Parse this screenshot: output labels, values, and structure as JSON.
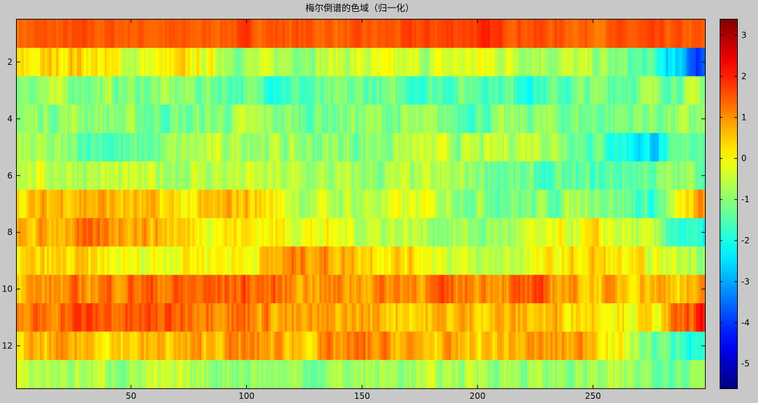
{
  "window": {
    "background": "#c8c8c8"
  },
  "chart_data": {
    "type": "heatmap",
    "title": "梅尔倒谱的色域（归一化）",
    "xlabel": "",
    "ylabel": "",
    "colormap": "jet",
    "x_range": [
      1,
      298
    ],
    "y_range": [
      1,
      13
    ],
    "y_reversed": true,
    "clim": [
      -5.6,
      3.4
    ],
    "n_rows": 13,
    "n_cols": 298,
    "xticks": [
      50,
      100,
      150,
      200,
      250
    ],
    "yticks": [
      2,
      4,
      6,
      8,
      10,
      12
    ],
    "colorbar_ticks": [
      3,
      2,
      1,
      0,
      -1,
      -2,
      -3,
      -4,
      -5
    ],
    "grid": false,
    "colorbar_location": "right",
    "row_profiles": [
      [
        1.4,
        1.5,
        1.5,
        1.4,
        1.6,
        1.5,
        1.4,
        1.6,
        1.8,
        1.6,
        1.4,
        1.5,
        1.4
      ],
      [
        0.0,
        0.6,
        -0.4,
        0.1,
        -0.8,
        -0.6,
        -0.4,
        -0.6,
        -0.2,
        -0.5,
        -0.8,
        -1.7,
        -4.0
      ],
      [
        -0.8,
        -0.9,
        -1.1,
        -1.0,
        -1.4,
        -1.6,
        -1.3,
        -1.5,
        -1.2,
        -1.7,
        -1.2,
        -1.0,
        -0.9
      ],
      [
        -1.0,
        -0.8,
        -1.1,
        -1.3,
        -0.8,
        -1.2,
        -1.0,
        -1.1,
        -1.3,
        -1.0,
        -1.2,
        -1.0,
        -1.0
      ],
      [
        -0.8,
        -1.2,
        -1.6,
        -0.8,
        -0.6,
        -1.0,
        -1.0,
        -0.6,
        -0.8,
        -0.3,
        -1.3,
        -2.5,
        -1.0
      ],
      [
        -0.4,
        -0.5,
        -0.7,
        -0.6,
        -0.6,
        -0.8,
        -0.9,
        -0.8,
        -0.9,
        -1.6,
        -1.6,
        -1.2,
        -1.0
      ],
      [
        0.2,
        0.9,
        0.5,
        0.1,
        0.7,
        -0.6,
        -0.6,
        -0.3,
        -0.9,
        -1.2,
        -0.6,
        -1.8,
        1.0
      ],
      [
        0.4,
        1.0,
        1.1,
        0.3,
        0.2,
        0.0,
        -0.4,
        -0.6,
        -1.0,
        -0.6,
        0.0,
        -0.8,
        -2.4
      ],
      [
        0.2,
        0.3,
        -0.2,
        0.2,
        0.1,
        1.2,
        0.6,
        0.3,
        -0.8,
        -0.2,
        0.4,
        -0.3,
        -0.6
      ],
      [
        0.8,
        1.0,
        1.4,
        1.3,
        1.5,
        1.0,
        1.0,
        1.2,
        1.2,
        1.3,
        0.6,
        0.8,
        0.6
      ],
      [
        1.0,
        1.6,
        1.4,
        1.5,
        1.3,
        0.6,
        0.8,
        0.5,
        0.7,
        0.6,
        0.5,
        0.0,
        2.0
      ],
      [
        0.4,
        0.7,
        0.5,
        0.6,
        1.0,
        0.6,
        1.1,
        0.6,
        0.5,
        0.8,
        0.9,
        -1.2,
        -2.0
      ],
      [
        -0.6,
        -0.7,
        -0.7,
        -0.8,
        -0.8,
        -1.0,
        -0.8,
        -0.8,
        -0.6,
        -0.9,
        -0.9,
        -1.0,
        -0.8
      ]
    ],
    "profile_columns": [
      1,
      25,
      50,
      75,
      100,
      125,
      150,
      175,
      200,
      225,
      250,
      275,
      298
    ],
    "noise_amplitude": 0.55,
    "noise_seed": 7
  }
}
